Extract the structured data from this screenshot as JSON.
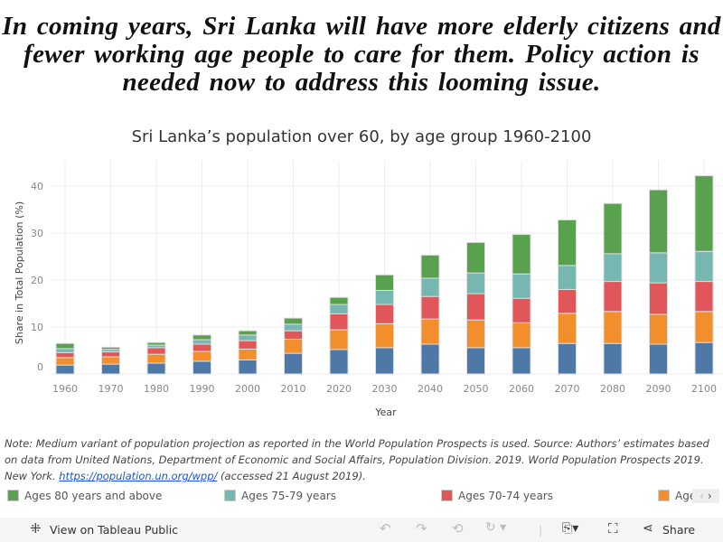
{
  "headline": "In coming years, Sri Lanka will have more elderly citizens and fewer working age people to care for them. Policy action is needed now to address this looming issue.",
  "chart_data": {
    "type": "bar",
    "stacked": true,
    "title": "Sri Lanka’s population over 60, by age group 1960-2100",
    "xlabel": "Year",
    "ylabel": "Share in Total Population (%)",
    "ylim": [
      0,
      45
    ],
    "yticks": [
      0,
      10,
      20,
      30,
      40
    ],
    "grid": true,
    "categories": [
      "1960",
      "1970",
      "1980",
      "1990",
      "2000",
      "2010",
      "2020",
      "2030",
      "2040",
      "2050",
      "2060",
      "2070",
      "2080",
      "2090",
      "2100"
    ],
    "series": [
      {
        "color": "#4e79a7",
        "values": [
          1.9,
          2.1,
          2.3,
          2.7,
          3.0,
          4.4,
          5.2,
          5.6,
          6.35,
          5.6,
          5.6,
          6.5,
          6.5,
          6.35,
          6.7
        ]
      },
      {
        "name": "Age",
        "color": "#f28e2b",
        "values": [
          1.6,
          1.55,
          1.9,
          2.1,
          2.3,
          3.0,
          4.2,
          5.1,
          5.35,
          5.9,
          5.3,
          6.4,
          6.8,
          6.35,
          6.6
        ]
      },
      {
        "name": "Ages 70-74 years",
        "color": "#e15759",
        "values": [
          1.05,
          1.05,
          1.4,
          1.55,
          1.8,
          1.8,
          3.4,
          4.1,
          4.8,
          5.6,
          5.2,
          5.1,
          6.4,
          6.7,
          6.4
        ]
      },
      {
        "name": "Ages 75-79 years",
        "color": "#76b7b2",
        "values": [
          0.85,
          0.55,
          0.55,
          0.95,
          1.2,
          1.4,
          2.0,
          3.0,
          3.9,
          4.4,
          5.2,
          5.1,
          5.9,
          6.4,
          6.4
        ]
      },
      {
        "name": "Ages 80 years and above",
        "color": "#59a14f",
        "values": [
          1.1,
          0.45,
          0.55,
          1.0,
          0.9,
          1.3,
          1.5,
          3.3,
          4.9,
          6.5,
          8.4,
          9.7,
          10.7,
          13.4,
          16.1
        ]
      }
    ],
    "legend_position": "bottom"
  },
  "note": {
    "text": "Note: Medium variant of population projection as reported in the World Population Prospects is used. Source: Authors’ estimates based on data from United Nations, Department of Economic and Social Affairs, Population Division. 2019. World Population Prospects 2019. New York. ",
    "link": "https://population.un.org/wpp/",
    "suffix": " (accessed 21 August 2019)."
  },
  "legend_nav": {
    "prev": "‹",
    "next": "›"
  },
  "toolbar": {
    "view": "View on Tableau Public",
    "share": "Share"
  }
}
